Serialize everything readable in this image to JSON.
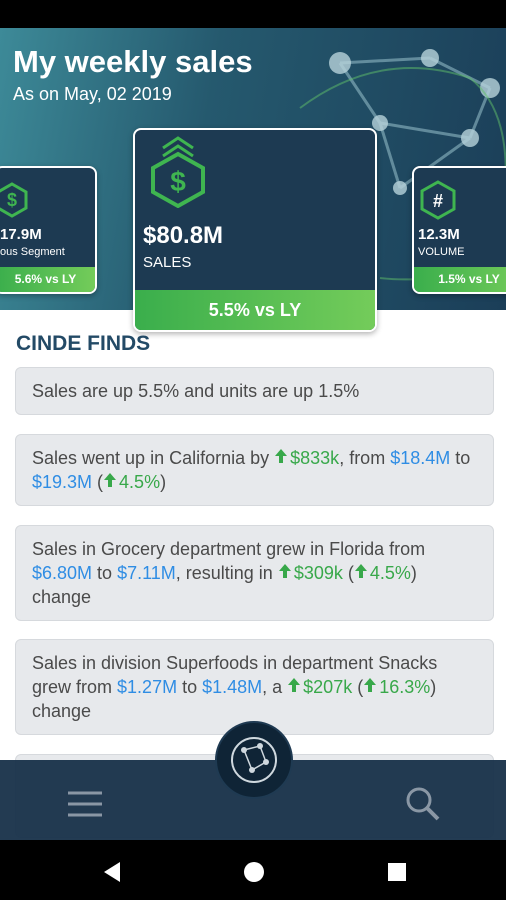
{
  "header": {
    "title": "My weekly sales",
    "subtitle": "As on May, 02 2019"
  },
  "cards": [
    {
      "value": "17.9M",
      "label": "ous Segment",
      "change": "5.6% vs LY"
    },
    {
      "value": "$80.8M",
      "label": "SALES",
      "change": "5.5% vs LY"
    },
    {
      "value": "12.3M",
      "label": "VOLUME",
      "change": "1.5% vs LY"
    }
  ],
  "section_title": "CINDE FINDS",
  "findings": [
    {
      "parts": [
        {
          "text": "Sales are up 5.5% and units are up 1.5%",
          "style": "plain"
        }
      ]
    },
    {
      "parts": [
        {
          "text": "Sales went up in California by ",
          "style": "plain"
        },
        {
          "text": "$833k",
          "style": "up"
        },
        {
          "text": ", from ",
          "style": "plain"
        },
        {
          "text": "$18.4M",
          "style": "blue"
        },
        {
          "text": " to ",
          "style": "plain"
        },
        {
          "text": "$19.3M",
          "style": "blue"
        },
        {
          "text": " (",
          "style": "plain"
        },
        {
          "text": "4.5%",
          "style": "up"
        },
        {
          "text": ")",
          "style": "plain"
        }
      ]
    },
    {
      "parts": [
        {
          "text": "Sales in Grocery department grew in Florida from ",
          "style": "plain"
        },
        {
          "text": "$6.80M",
          "style": "blue"
        },
        {
          "text": " to ",
          "style": "plain"
        },
        {
          "text": "$7.11M",
          "style": "blue"
        },
        {
          "text": ", resulting in ",
          "style": "plain"
        },
        {
          "text": "$309k",
          "style": "up"
        },
        {
          "text": " (",
          "style": "plain"
        },
        {
          "text": "4.5%",
          "style": "up"
        },
        {
          "text": ") change",
          "style": "plain"
        }
      ]
    },
    {
      "parts": [
        {
          "text": "Sales in division Superfoods in department Snacks grew from ",
          "style": "plain"
        },
        {
          "text": "$1.27M",
          "style": "blue"
        },
        {
          "text": " to ",
          "style": "plain"
        },
        {
          "text": "$1.48M",
          "style": "blue"
        },
        {
          "text": ", a ",
          "style": "plain"
        },
        {
          "text": "$207k",
          "style": "up"
        },
        {
          "text": " (",
          "style": "plain"
        },
        {
          "text": "16.3%",
          "style": "up"
        },
        {
          "text": ") change",
          "style": "plain"
        }
      ]
    }
  ]
}
